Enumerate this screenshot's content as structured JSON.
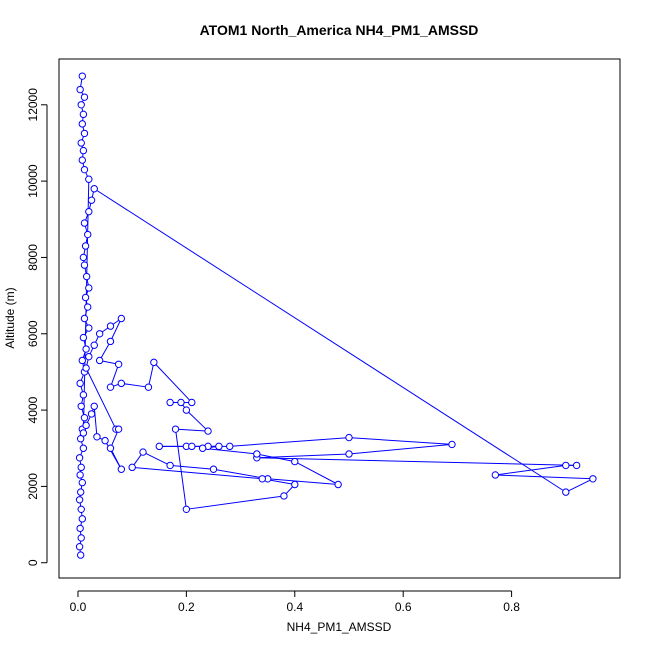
{
  "chart_data": {
    "type": "line",
    "title": "ATOM1 North_America NH4_PM1_AMSSD",
    "xlabel": "NH4_PM1_AMSSD",
    "ylabel": "Altitude (m)",
    "xlim": [
      -0.035,
      1.0
    ],
    "ylim": [
      -400,
      13200
    ],
    "x_ticks": [
      0.0,
      0.2,
      0.4,
      0.6,
      0.8
    ],
    "x_tick_labels": [
      "0.0",
      "0.2",
      "0.4",
      "0.6",
      "0.8"
    ],
    "y_ticks": [
      0,
      2000,
      4000,
      6000,
      8000,
      10000,
      12000
    ],
    "y_tick_labels": [
      "0",
      "2000",
      "4000",
      "6000",
      "8000",
      "10000",
      "12000"
    ],
    "grid": false,
    "series_color": "#0000ff",
    "series": [
      {
        "points": [
          [
            0.005,
            200
          ],
          [
            0.003,
            420
          ],
          [
            0.006,
            650
          ],
          [
            0.004,
            900
          ],
          [
            0.008,
            1150
          ],
          [
            0.006,
            1400
          ],
          [
            0.003,
            1650
          ],
          [
            0.005,
            1850
          ],
          [
            0.008,
            2100
          ],
          [
            0.004,
            2300
          ],
          [
            0.006,
            2500
          ],
          [
            0.003,
            2750
          ],
          [
            0.01,
            3000
          ],
          [
            0.005,
            3250
          ],
          [
            0.008,
            3500
          ],
          [
            0.012,
            3800
          ],
          [
            0.006,
            4100
          ],
          [
            0.01,
            4400
          ],
          [
            0.004,
            4700
          ],
          [
            0.012,
            5000
          ],
          [
            0.008,
            5300
          ],
          [
            0.015,
            5600
          ],
          [
            0.01,
            5900
          ],
          [
            0.02,
            6150
          ],
          [
            0.012,
            6400
          ],
          [
            0.018,
            6700
          ],
          [
            0.014,
            6950
          ],
          [
            0.02,
            7200
          ],
          [
            0.016,
            7500
          ],
          [
            0.012,
            7800
          ],
          [
            0.01,
            8000
          ],
          [
            0.014,
            8300
          ],
          [
            0.018,
            8600
          ],
          [
            0.012,
            8900
          ],
          [
            0.02,
            9200
          ],
          [
            0.025,
            9500
          ],
          [
            0.03,
            9800
          ],
          [
            0.9,
            1850
          ],
          [
            0.95,
            2200
          ],
          [
            0.77,
            2300
          ],
          [
            0.9,
            2550
          ],
          [
            0.92,
            2550
          ],
          [
            0.33,
            2750
          ],
          [
            0.5,
            2850
          ],
          [
            0.69,
            3100
          ],
          [
            0.5,
            3280
          ],
          [
            0.28,
            3050
          ],
          [
            0.2,
            3050
          ],
          [
            0.15,
            3050
          ],
          [
            0.21,
            3050
          ],
          [
            0.24,
            3050
          ],
          [
            0.26,
            3050
          ],
          [
            0.23,
            3000
          ],
          [
            0.33,
            2850
          ],
          [
            0.4,
            2650
          ],
          [
            0.48,
            2050
          ],
          [
            0.35,
            2200
          ],
          [
            0.25,
            2450
          ],
          [
            0.17,
            2550
          ],
          [
            0.12,
            2900
          ],
          [
            0.1,
            2500
          ],
          [
            0.34,
            2200
          ],
          [
            0.4,
            2050
          ],
          [
            0.38,
            1750
          ],
          [
            0.2,
            1400
          ],
          [
            0.18,
            3500
          ],
          [
            0.24,
            3450
          ],
          [
            0.2,
            4000
          ],
          [
            0.19,
            4200
          ],
          [
            0.17,
            4200
          ],
          [
            0.21,
            4200
          ],
          [
            0.14,
            5250
          ],
          [
            0.13,
            4600
          ],
          [
            0.08,
            4700
          ],
          [
            0.06,
            4600
          ],
          [
            0.075,
            5200
          ],
          [
            0.04,
            5300
          ],
          [
            0.06,
            5800
          ],
          [
            0.08,
            6400
          ],
          [
            0.06,
            6200
          ],
          [
            0.04,
            6000
          ],
          [
            0.03,
            5700
          ],
          [
            0.02,
            5400
          ],
          [
            0.015,
            5100
          ],
          [
            0.07,
            3500
          ],
          [
            0.075,
            3500
          ],
          [
            0.06,
            3000
          ],
          [
            0.08,
            2450
          ],
          [
            0.05,
            3200
          ],
          [
            0.035,
            3300
          ],
          [
            0.03,
            4100
          ],
          [
            0.025,
            3900
          ],
          [
            0.015,
            3600
          ],
          [
            0.01,
            3400
          ],
          [
            0.02,
            10050
          ],
          [
            0.012,
            10300
          ],
          [
            0.008,
            10550
          ],
          [
            0.01,
            10800
          ],
          [
            0.006,
            11000
          ],
          [
            0.012,
            11250
          ],
          [
            0.008,
            11500
          ],
          [
            0.01,
            11750
          ],
          [
            0.006,
            12000
          ],
          [
            0.012,
            12200
          ],
          [
            0.004,
            12400
          ],
          [
            0.008,
            12750
          ]
        ]
      }
    ]
  }
}
